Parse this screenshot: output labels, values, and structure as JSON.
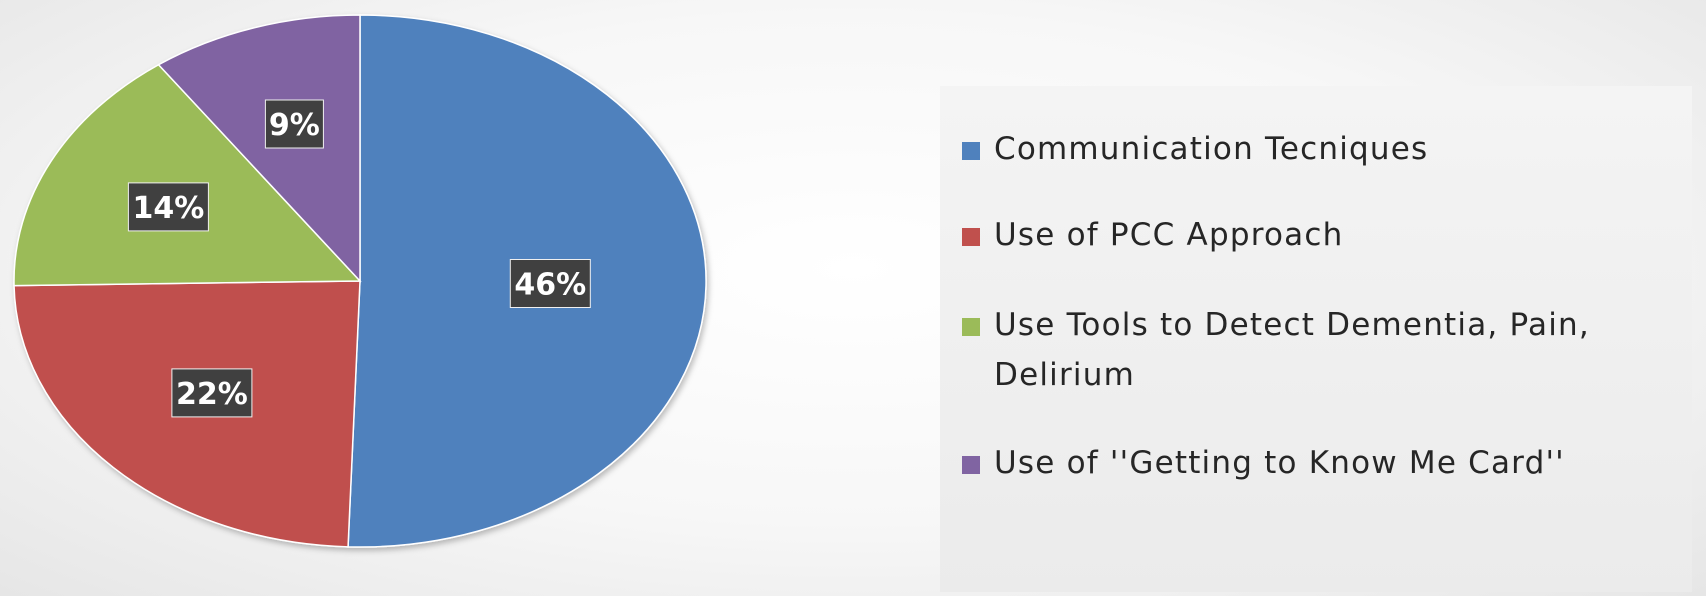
{
  "chart_data": {
    "type": "pie",
    "categories": [
      "Communication Tecniques",
      "Use of PCC Approach",
      "Use Tools to Detect Dementia, Pain, Delirium",
      "Use of ''Getting to Know Me Card''"
    ],
    "values": [
      46,
      22,
      14,
      9
    ],
    "data_labels": [
      "46%",
      "22%",
      "14%",
      "9%"
    ],
    "colors": [
      "#4f81bd",
      "#c0504d",
      "#9bbb59",
      "#8064a2"
    ],
    "title": "",
    "legend": "right"
  }
}
